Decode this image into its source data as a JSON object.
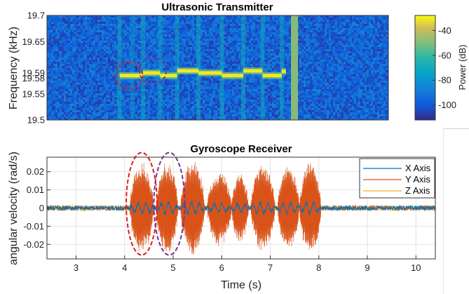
{
  "chart_data": [
    {
      "type": "heatmap",
      "title": "Ultrasonic Transmitter",
      "ylabel": "Frequency (kHz)",
      "xlim": [
        2.4,
        10.4
      ],
      "ylim": [
        19.5,
        19.7
      ],
      "yticks": [
        "19.5",
        "19.55",
        "19.58",
        "19.59",
        "19.65",
        "19.7"
      ],
      "ytick_values": [
        19.5,
        19.55,
        19.58,
        19.59,
        19.65,
        19.7
      ],
      "colorbar": {
        "label": "Power (dB)",
        "ticks": [
          "-40",
          "-60",
          "-80",
          "-100"
        ],
        "tick_values": [
          -40,
          -60,
          -80,
          -100
        ],
        "range": [
          -112,
          -28
        ]
      },
      "tone_segments": [
        {
          "t0": 4.1,
          "t1": 4.65,
          "f": 19.585
        },
        {
          "t0": 4.65,
          "t1": 5.05,
          "f": 19.59
        },
        {
          "t0": 5.05,
          "t1": 5.45,
          "f": 19.585
        },
        {
          "t0": 5.45,
          "t1": 5.95,
          "f": 19.594
        },
        {
          "t0": 5.95,
          "t1": 6.5,
          "f": 19.59
        },
        {
          "t0": 6.5,
          "t1": 7.0,
          "f": 19.585
        },
        {
          "t0": 7.0,
          "t1": 7.45,
          "f": 19.594
        },
        {
          "t0": 7.45,
          "t1": 7.9,
          "f": 19.585
        },
        {
          "t0": 7.9,
          "t1": 8.0,
          "f": 19.593
        }
      ],
      "broadband_bands": [
        {
          "t": 4.1,
          "level": -70
        },
        {
          "t": 4.4,
          "level": -80
        },
        {
          "t": 4.65,
          "level": -72
        },
        {
          "t": 5.05,
          "level": -72
        },
        {
          "t": 5.45,
          "level": -72
        },
        {
          "t": 5.95,
          "level": -70
        },
        {
          "t": 6.5,
          "level": -70
        },
        {
          "t": 7.0,
          "level": -70
        },
        {
          "t": 7.45,
          "level": -72
        },
        {
          "t": 7.9,
          "level": -72
        },
        {
          "t": 8.2,
          "level": -48
        }
      ],
      "annotations": [
        {
          "shape": "dashed-circle",
          "color": "#e31a1c",
          "t": 4.33,
          "f": 19.585
        },
        {
          "shape": "dashed-circle",
          "color": "#7b3294",
          "t": 4.88,
          "f": 19.594
        }
      ]
    },
    {
      "type": "line",
      "title": "Gyroscope Receiver",
      "xlabel": "Time (s)",
      "ylabel": "angular velocity (rad/s)",
      "xlim": [
        2.4,
        10.4
      ],
      "ylim": [
        -0.028,
        0.028
      ],
      "xticks": [
        "3",
        "4",
        "5",
        "6",
        "7",
        "8",
        "9",
        "10"
      ],
      "xtick_values": [
        3,
        4,
        5,
        6,
        7,
        8,
        9,
        10
      ],
      "yticks": [
        "0.02",
        "0.01",
        "0",
        "-0.01",
        "-0.02"
      ],
      "ytick_values": [
        0.02,
        0.01,
        0,
        -0.01,
        -0.02
      ],
      "grid": true,
      "legend_position": "top-right",
      "series": [
        {
          "name": "X Axis",
          "color": "#0072bd",
          "noise_amplitude": 0.0012,
          "burst_amplitude": 0.003
        },
        {
          "name": "Y Axis",
          "color": "#d95319",
          "noise_amplitude": 0.0015,
          "burst_amplitude": 0.021
        },
        {
          "name": "Z Axis",
          "color": "#edb120",
          "noise_amplitude": 0.0016,
          "burst_amplitude": 0.004
        }
      ],
      "bursts": [
        {
          "t0": 4.1,
          "t1": 4.6,
          "amplitude": 0.024
        },
        {
          "t0": 4.65,
          "t1": 5.1,
          "amplitude": 0.025
        },
        {
          "t0": 5.15,
          "t1": 5.65,
          "amplitude": 0.026
        },
        {
          "t0": 5.7,
          "t1": 6.2,
          "amplitude": 0.02
        },
        {
          "t0": 6.2,
          "t1": 6.55,
          "amplitude": 0.019
        },
        {
          "t0": 6.6,
          "t1": 7.1,
          "amplitude": 0.024
        },
        {
          "t0": 7.15,
          "t1": 7.6,
          "amplitude": 0.023
        },
        {
          "t0": 7.6,
          "t1": 8.05,
          "amplitude": 0.025
        }
      ],
      "annotations": [
        {
          "shape": "dashed-ellipse",
          "color": "#e31a1c",
          "t": 4.35,
          "y": 0.0
        },
        {
          "shape": "dashed-ellipse",
          "color": "#7b3294",
          "t": 4.92,
          "y": 0.0
        }
      ]
    }
  ]
}
